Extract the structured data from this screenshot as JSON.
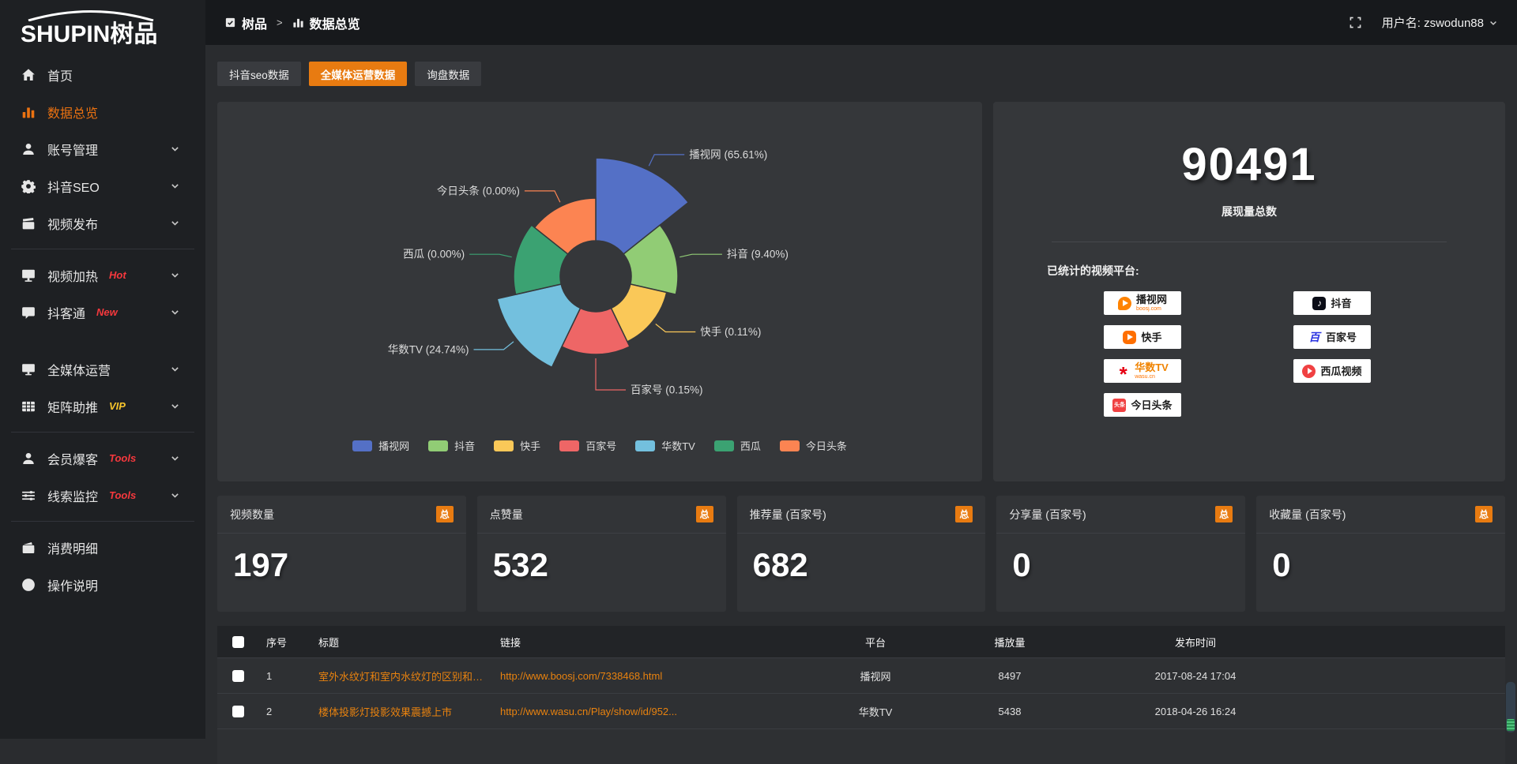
{
  "topbar": {
    "breadcrumb_app": "树品",
    "breadcrumb_sep": ">",
    "breadcrumb_page": "数据总览",
    "username": "用户名: zswodun88"
  },
  "sidebar": {
    "logo_text": "SHUPIN树品",
    "items": [
      {
        "key": "home",
        "icon": "home",
        "label": "首页",
        "active": false,
        "chevron": false
      },
      {
        "key": "data-overview",
        "icon": "bar-chart",
        "label": "数据总览",
        "active": true,
        "chevron": false
      },
      {
        "key": "account-management",
        "icon": "user",
        "label": "账号管理",
        "active": false,
        "chevron": true
      },
      {
        "key": "douyin-seo",
        "icon": "gear",
        "label": "抖音SEO",
        "active": false,
        "chevron": true
      },
      {
        "key": "video-publish",
        "icon": "video-publish",
        "label": "视频发布",
        "active": false,
        "chevron": true,
        "divider_after": true
      },
      {
        "key": "video-heating",
        "icon": "monitor-play",
        "label": "视频加热",
        "active": false,
        "chevron": true,
        "tag": {
          "text": "Hot",
          "color": "#f5383d"
        }
      },
      {
        "key": "doukotong",
        "icon": "chat",
        "label": "抖客通",
        "active": false,
        "chevron": true,
        "tag": {
          "text": "New",
          "color": "#f5383d"
        },
        "gap_after": true
      },
      {
        "key": "all-media-operation",
        "icon": "monitor",
        "label": "全媒体运营",
        "active": false,
        "chevron": true
      },
      {
        "key": "matrix-boost",
        "icon": "grid",
        "label": "矩阵助推",
        "active": false,
        "chevron": true,
        "tag": {
          "text": "VIP",
          "color": "#f7c52c"
        },
        "divider_after": true
      },
      {
        "key": "member-baoke",
        "icon": "user-group",
        "label": "会员爆客",
        "active": false,
        "chevron": true,
        "tag": {
          "text": "Tools",
          "color": "#f5383d"
        }
      },
      {
        "key": "clue-monitor",
        "icon": "sliders",
        "label": "线索监控",
        "active": false,
        "chevron": true,
        "tag": {
          "text": "Tools",
          "color": "#f5383d"
        },
        "divider_after": true
      },
      {
        "key": "consumption-detail",
        "icon": "wallet",
        "label": "消费明细",
        "active": false,
        "chevron": false
      },
      {
        "key": "operation-guide",
        "icon": "question",
        "label": "操作说明",
        "active": false,
        "chevron": false
      }
    ]
  },
  "tabs": [
    {
      "key": "douyin-seo-data",
      "label": "抖音seo数据",
      "active": false
    },
    {
      "key": "all-media-operation-data",
      "label": "全媒体运营数据",
      "active": true
    },
    {
      "key": "inquiry-data",
      "label": "询盘数据",
      "active": false
    }
  ],
  "chart_data": {
    "type": "pie",
    "variant": "nightingale-rose-donut",
    "title": "",
    "legend_position": "bottom",
    "inner_radius_px": 45,
    "slices": [
      {
        "name": "播视网",
        "percent_label": "65.61%",
        "value_pct": 65.61,
        "color": "#5470c6",
        "radius_px": 150
      },
      {
        "name": "抖音",
        "percent_label": "9.40%",
        "value_pct": 9.4,
        "color": "#91cc75",
        "radius_px": 104
      },
      {
        "name": "快手",
        "percent_label": "0.11%",
        "value_pct": 0.11,
        "color": "#fac858",
        "radius_px": 92
      },
      {
        "name": "百家号",
        "percent_label": "0.15%",
        "value_pct": 0.15,
        "color": "#ee6666",
        "radius_px": 99
      },
      {
        "name": "华数TV",
        "percent_label": "24.74%",
        "value_pct": 24.74,
        "color": "#73c0de",
        "radius_px": 128
      },
      {
        "name": "西瓜",
        "percent_label": "0.00%",
        "value_pct": 0.0,
        "color": "#3ba272",
        "radius_px": 104
      },
      {
        "name": "今日头条",
        "percent_label": "0.00%",
        "value_pct": 0.0,
        "color": "#fc8452",
        "radius_px": 99
      }
    ]
  },
  "overview": {
    "total_value": "90491",
    "total_label": "展现量总数",
    "platforms_label": "已统计的视频平台:",
    "platforms": [
      {
        "key": "boosj",
        "label": "播视网",
        "sub": "boosj.com"
      },
      {
        "key": "douyin",
        "label": "抖音",
        "sub": ""
      },
      {
        "key": "kuaishou",
        "label": "快手",
        "sub": ""
      },
      {
        "key": "baijiahao",
        "label": "百家号",
        "sub": ""
      },
      {
        "key": "wasu",
        "label": "华数TV",
        "sub": "wasu.cn"
      },
      {
        "key": "xigua",
        "label": "西瓜视频",
        "sub": ""
      },
      {
        "key": "toutiao",
        "label": "今日头条",
        "sub": ""
      }
    ]
  },
  "stat_cards": {
    "badge": "总",
    "items": [
      {
        "title": "视频数量",
        "value": "197"
      },
      {
        "title": "点赞量",
        "value": "532"
      },
      {
        "title": "推荐量 (百家号)",
        "value": "682"
      },
      {
        "title": "分享量 (百家号)",
        "value": "0"
      },
      {
        "title": "收藏量 (百家号)",
        "value": "0"
      }
    ]
  },
  "table": {
    "headers": [
      "",
      "序号",
      "标题",
      "链接",
      "平台",
      "播放量",
      "发布时间"
    ],
    "rows": [
      {
        "no": "1",
        "title": "室外水纹灯和室内水纹灯的区别和简介",
        "link": "http://www.boosj.com/7338468.html",
        "platform": "播视网",
        "plays": "8497",
        "time": "2017-08-24 17:04"
      },
      {
        "no": "2",
        "title": "楼体投影灯投影效果震撼上市",
        "link": "http://www.wasu.cn/Play/show/id/952...",
        "platform": "华数TV",
        "plays": "5438",
        "time": "2018-04-26 16:24"
      },
      {
        "no": "",
        "title": "",
        "link": "",
        "platform": "",
        "plays": "",
        "time": ""
      }
    ]
  },
  "colors": {
    "accent_orange": "#e87b11",
    "link_orange": "#e8820f",
    "tag_red": "#f5383d",
    "tag_yellow": "#f7c52c",
    "panel_bg": "#35373a",
    "sidebar_bg": "#1e2023",
    "topbar_bg": "#17191c"
  }
}
